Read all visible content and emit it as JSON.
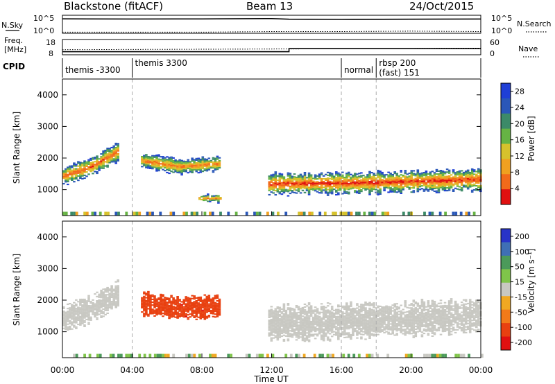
{
  "header": {
    "station": "Blackstone (fitACF)",
    "beam": "Beam 13",
    "date": "24/Oct/2015"
  },
  "side_labels": {
    "nsky": "N.Sky",
    "nsearch": "N.Search",
    "freq_line1": "Freq.",
    "freq_line2": "[MHz]",
    "nave": "Nave",
    "cpid": "CPID"
  },
  "small_axis_ticks": {
    "noise_left_top": "10^5",
    "noise_left_bottom": "10^0",
    "noise_right_top": "10^5",
    "noise_right_bottom": "10^0",
    "freq_left_top": "18",
    "freq_left_bottom": "8",
    "nave_right_top": "60",
    "nave_right_bottom": "0"
  },
  "cpid_segments": [
    {
      "label": "themis -3300",
      "start_h": 0.0
    },
    {
      "label": "themis 3300",
      "start_h": 4.0
    },
    {
      "label": "normal",
      "start_h": 16.0
    },
    {
      "label": "rbsp 200",
      "start_h": 18.0
    },
    {
      "label": "(fast) 151",
      "start_h": 18.0
    }
  ],
  "colors": {
    "power_scale": [
      "#1f3fd6",
      "#2a57b8",
      "#3c8a68",
      "#66b344",
      "#d6c22c",
      "#f0a020",
      "#f26a1a",
      "#e01010"
    ],
    "velocity_scale": [
      "#2834c8",
      "#3f6fb5",
      "#4b9a5a",
      "#7fc44a",
      "#c8c8c2",
      "#f0a822",
      "#f27a1a",
      "#e84010",
      "#e01010"
    ],
    "no_data_grey": "#c8c8c2"
  },
  "chart_data": [
    {
      "type": "line",
      "title": "N.Sky / N.Search",
      "x_range": [
        "00:00",
        "24:00"
      ],
      "y_scale": "log",
      "ylim": [
        "10^0",
        "10^5"
      ],
      "series": [
        {
          "name": "N.Sky",
          "style": "solid",
          "x": [
            "00:00",
            "04:00",
            "08:00",
            "12:00",
            "13:00",
            "16:00",
            "20:00",
            "24:00"
          ],
          "values": [
            10000,
            9000,
            9500,
            12000,
            8000,
            7000,
            8000,
            9000
          ]
        },
        {
          "name": "N.Search",
          "style": "dotted",
          "x": [
            "00:00",
            "04:00",
            "08:00",
            "12:00",
            "13:00",
            "16:00",
            "20:00",
            "24:00"
          ],
          "values": [
            2,
            2,
            2,
            3,
            3,
            3,
            4,
            3
          ]
        }
      ]
    },
    {
      "type": "line",
      "title": "Freq. [MHz] / Nave",
      "x_range": [
        "00:00",
        "24:00"
      ],
      "ylim_left": [
        8,
        18
      ],
      "ylim_right": [
        0,
        60
      ],
      "series": [
        {
          "name": "Freq.",
          "style": "solid",
          "x": [
            "00:00",
            "13:00",
            "13:00",
            "24:00"
          ],
          "values": [
            10,
            10,
            12,
            12
          ]
        },
        {
          "name": "Nave",
          "style": "dotted",
          "x": [
            "00:00",
            "18:00",
            "24:00"
          ],
          "values": [
            20,
            24,
            26
          ]
        }
      ]
    },
    {
      "type": "heatmap",
      "title": "Power [dB]",
      "xlabel": "",
      "ylabel": "Slant Range [km]",
      "x_range": [
        "00:00",
        "24:00"
      ],
      "ylim": [
        180,
        4500
      ],
      "yticks": [
        "1000",
        "2000",
        "3000",
        "4000"
      ],
      "colorbar": {
        "label": "Power [dB]",
        "ticks": [
          "4",
          "8",
          "12",
          "16",
          "20",
          "24",
          "28"
        ],
        "range": [
          0,
          30
        ]
      },
      "echo_bands": [
        {
          "t_start": 0.0,
          "t_end": 3.2,
          "center_km": [
            1400,
            1700,
            2200
          ],
          "thickness_km": 350,
          "peak_db": 26
        },
        {
          "t_start": 4.5,
          "t_end": 9.0,
          "center_km": [
            1900,
            1700,
            1800
          ],
          "thickness_km": 300,
          "peak_db": 24
        },
        {
          "t_start": 11.8,
          "t_end": 24.0,
          "center_km": [
            1150,
            1200,
            1300
          ],
          "thickness_km": 400,
          "peak_db": 28
        },
        {
          "t_start": 7.8,
          "t_end": 9.0,
          "center_km": [
            700,
            700,
            700
          ],
          "thickness_km": 150,
          "peak_db": 22
        }
      ]
    },
    {
      "type": "heatmap",
      "title": "Velocity [m s^-1]",
      "xlabel": "Time UT",
      "ylabel": "Slant Range [km]",
      "x_range": [
        "00:00",
        "24:00"
      ],
      "xticks": [
        "00:00",
        "04:00",
        "08:00",
        "12:00",
        "16:00",
        "20:00",
        "00:00"
      ],
      "ylim": [
        180,
        4500
      ],
      "yticks": [
        "1000",
        "2000",
        "3000",
        "4000"
      ],
      "colorbar": {
        "label": "Velocity [m s⁻¹]",
        "ticks": [
          "200",
          "100",
          "50",
          "15",
          "-15",
          "-50",
          "-100",
          "-200"
        ],
        "range": [
          -250,
          250
        ]
      },
      "echo_bands": [
        {
          "t_start": 0.0,
          "t_end": 3.2,
          "center_km": [
            1400,
            1700,
            2200
          ],
          "thickness_km": 500,
          "velocity": 0
        },
        {
          "t_start": 4.5,
          "t_end": 9.0,
          "center_km": [
            1900,
            1700,
            1800
          ],
          "thickness_km": 450,
          "velocity": -180
        },
        {
          "t_start": 11.8,
          "t_end": 24.0,
          "center_km": [
            1250,
            1350,
            1500
          ],
          "thickness_km": 650,
          "velocity": 0
        }
      ]
    }
  ],
  "labels": {
    "ylabel_power": "Slant Range [km]",
    "ylabel_velocity": "Slant Range [km]",
    "xlabel": "Time UT",
    "power_colorbar_label": "Power [dB]",
    "velocity_colorbar_label": "Velocity [m s⁻¹]"
  }
}
